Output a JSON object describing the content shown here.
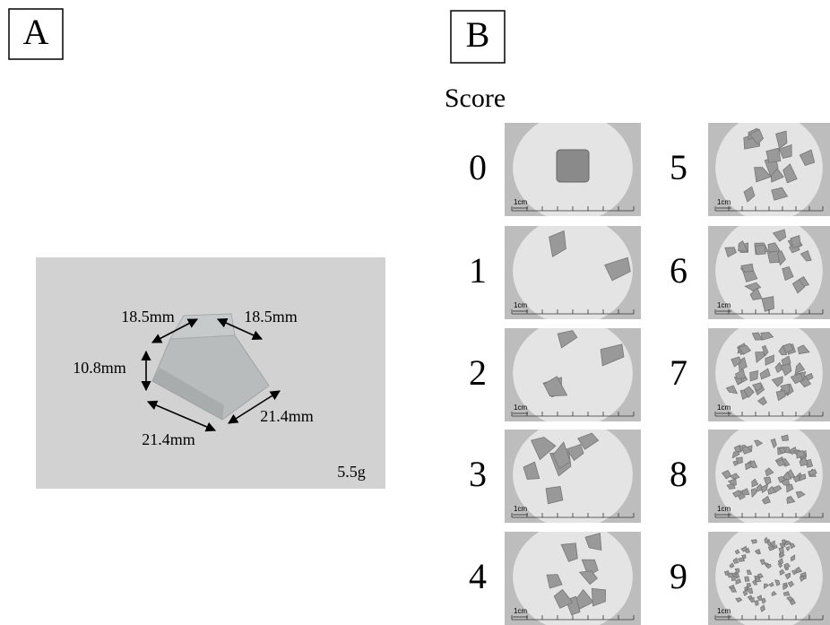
{
  "panel_a": {
    "label": "A",
    "dimensions": {
      "top_left": "18.5mm",
      "top_right": "18.5mm",
      "height": "10.8mm",
      "bottom_right": "21.4mm",
      "bottom_left": "21.4mm"
    },
    "weight": "5.5g"
  },
  "panel_b": {
    "label": "B",
    "heading": "Score",
    "scores": [
      0,
      1,
      2,
      3,
      4,
      5,
      6,
      7,
      8,
      9
    ],
    "scale_label": "1cm"
  }
}
